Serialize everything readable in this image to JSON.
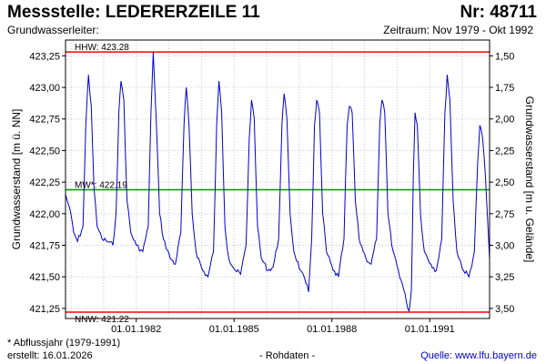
{
  "header": {
    "title": "Messstelle: LEDERERZEILE 11",
    "number": "Nr: 48711",
    "aquifer": "Grundwasserleiter:",
    "period": "Zeitraum: Nov 1979 - Okt 1992"
  },
  "footer": {
    "footnote": "* Abflussjahr (1979-1991)",
    "created": "erstellt:  16.01.2026",
    "raw": "- Rohdaten -",
    "source": "Quelle: www.lfu.bayern.de"
  },
  "colors": {
    "series": "#0000cc",
    "extreme_lines": "#ff0000",
    "mean_line": "#009900",
    "grid": "#c8c8c8"
  },
  "chart_data": {
    "type": "line",
    "ylabel": "Grundwasserstand [m ü. NN]",
    "ylabel_right": "Grundwasserstand [m u. Gelände]",
    "ylim": [
      421.17,
      423.375
    ],
    "xlim": [
      "1979-11-01",
      "1992-11-01"
    ],
    "grid": true,
    "y_ticks": [
      {
        "value": 423.25,
        "label": "423,25"
      },
      {
        "value": 423.0,
        "label": "423,00"
      },
      {
        "value": 422.75,
        "label": "422,75"
      },
      {
        "value": 422.5,
        "label": "422,50"
      },
      {
        "value": 422.25,
        "label": "422,25"
      },
      {
        "value": 422.0,
        "label": "422,00"
      },
      {
        "value": 421.75,
        "label": "421,75"
      },
      {
        "value": 421.5,
        "label": "421,50"
      },
      {
        "value": 421.25,
        "label": "421,25"
      }
    ],
    "y_ticks_right": [
      {
        "value": 423.25,
        "label": "1,50"
      },
      {
        "value": 423.0,
        "label": "1,75"
      },
      {
        "value": 422.75,
        "label": "2,00"
      },
      {
        "value": 422.5,
        "label": "2,25"
      },
      {
        "value": 422.25,
        "label": "2,50"
      },
      {
        "value": 422.0,
        "label": "2,75"
      },
      {
        "value": 421.75,
        "label": "3,00"
      },
      {
        "value": 421.5,
        "label": "3,25"
      },
      {
        "value": 421.25,
        "label": "3,50"
      }
    ],
    "x_ticks": [
      {
        "value": "1982-01-01",
        "label": "01.01.1982"
      },
      {
        "value": "1985-01-01",
        "label": "01.01.1985"
      },
      {
        "value": "1988-01-01",
        "label": "01.01.1988"
      },
      {
        "value": "1991-01-01",
        "label": "01.01.1991"
      }
    ],
    "reference_lines": [
      {
        "name": "HHW",
        "value": 423.28,
        "label": "HHW: 423.28"
      },
      {
        "name": "MW",
        "value": 422.19,
        "label": "MW*: 422.19"
      },
      {
        "name": "NNW",
        "value": 421.22,
        "label": "NNW: 421.22"
      }
    ],
    "series": [
      {
        "points": [
          [
            "1979-11-01",
            422.15
          ],
          [
            "1979-12-15",
            422.05
          ],
          [
            "1980-02-01",
            421.85
          ],
          [
            "1980-03-15",
            421.78
          ],
          [
            "1980-05-15",
            421.9
          ],
          [
            "1980-06-15",
            422.7
          ],
          [
            "1980-07-15",
            423.1
          ],
          [
            "1980-08-15",
            422.85
          ],
          [
            "1980-09-15",
            422.2
          ],
          [
            "1980-10-20",
            421.9
          ],
          [
            "1980-12-15",
            421.8
          ],
          [
            "1981-02-15",
            421.78
          ],
          [
            "1981-04-15",
            421.75
          ],
          [
            "1981-05-20",
            422.0
          ],
          [
            "1981-06-20",
            422.8
          ],
          [
            "1981-07-15",
            423.05
          ],
          [
            "1981-08-15",
            422.9
          ],
          [
            "1981-09-20",
            422.1
          ],
          [
            "1981-11-01",
            421.85
          ],
          [
            "1982-01-01",
            421.75
          ],
          [
            "1982-03-15",
            421.7
          ],
          [
            "1982-05-15",
            421.9
          ],
          [
            "1982-06-15",
            422.8
          ],
          [
            "1982-07-10",
            423.28
          ],
          [
            "1982-08-15",
            422.7
          ],
          [
            "1982-09-20",
            422.0
          ],
          [
            "1982-11-01",
            421.8
          ],
          [
            "1983-01-15",
            421.65
          ],
          [
            "1983-03-15",
            421.6
          ],
          [
            "1983-05-15",
            421.85
          ],
          [
            "1983-06-20",
            422.7
          ],
          [
            "1983-07-15",
            423.0
          ],
          [
            "1983-08-15",
            422.7
          ],
          [
            "1983-09-20",
            422.0
          ],
          [
            "1983-11-01",
            421.7
          ],
          [
            "1984-01-15",
            421.55
          ],
          [
            "1984-03-15",
            421.5
          ],
          [
            "1984-05-15",
            421.7
          ],
          [
            "1984-06-20",
            422.7
          ],
          [
            "1984-07-15",
            423.05
          ],
          [
            "1984-08-15",
            422.8
          ],
          [
            "1984-09-20",
            421.9
          ],
          [
            "1984-11-01",
            421.65
          ],
          [
            "1985-01-15",
            421.55
          ],
          [
            "1985-03-15",
            421.52
          ],
          [
            "1985-05-15",
            421.75
          ],
          [
            "1985-06-20",
            422.6
          ],
          [
            "1985-07-15",
            422.9
          ],
          [
            "1985-08-15",
            422.75
          ],
          [
            "1985-09-20",
            421.9
          ],
          [
            "1985-11-01",
            421.65
          ],
          [
            "1986-01-15",
            421.55
          ],
          [
            "1986-03-15",
            421.58
          ],
          [
            "1986-05-15",
            421.8
          ],
          [
            "1986-06-20",
            422.7
          ],
          [
            "1986-07-15",
            422.95
          ],
          [
            "1986-08-15",
            422.75
          ],
          [
            "1986-09-20",
            422.0
          ],
          [
            "1986-11-01",
            421.7
          ],
          [
            "1987-01-15",
            421.55
          ],
          [
            "1987-03-15",
            421.45
          ],
          [
            "1987-04-15",
            421.38
          ],
          [
            "1987-05-20",
            421.8
          ],
          [
            "1987-06-20",
            422.7
          ],
          [
            "1987-07-15",
            422.9
          ],
          [
            "1987-08-15",
            422.8
          ],
          [
            "1987-09-20",
            422.0
          ],
          [
            "1987-11-01",
            421.7
          ],
          [
            "1988-01-15",
            421.55
          ],
          [
            "1988-03-15",
            421.5
          ],
          [
            "1988-05-15",
            421.8
          ],
          [
            "1988-06-20",
            422.7
          ],
          [
            "1988-07-15",
            422.85
          ],
          [
            "1988-08-15",
            422.8
          ],
          [
            "1988-09-20",
            422.1
          ],
          [
            "1988-11-01",
            421.8
          ],
          [
            "1989-01-15",
            421.65
          ],
          [
            "1989-03-15",
            421.6
          ],
          [
            "1989-05-15",
            421.8
          ],
          [
            "1989-06-20",
            422.7
          ],
          [
            "1989-07-15",
            422.9
          ],
          [
            "1989-08-15",
            422.8
          ],
          [
            "1989-09-20",
            422.0
          ],
          [
            "1989-11-01",
            421.75
          ],
          [
            "1990-01-15",
            421.55
          ],
          [
            "1990-03-15",
            421.4
          ],
          [
            "1990-04-15",
            421.3
          ],
          [
            "1990-05-15",
            421.23
          ],
          [
            "1990-06-10",
            421.4
          ],
          [
            "1990-07-01",
            422.3
          ],
          [
            "1990-07-20",
            422.8
          ],
          [
            "1990-08-15",
            422.7
          ],
          [
            "1990-09-20",
            422.0
          ],
          [
            "1990-11-01",
            421.7
          ],
          [
            "1991-01-15",
            421.6
          ],
          [
            "1991-03-15",
            421.55
          ],
          [
            "1991-05-15",
            421.8
          ],
          [
            "1991-06-20",
            422.8
          ],
          [
            "1991-07-15",
            423.1
          ],
          [
            "1991-08-15",
            422.9
          ],
          [
            "1991-09-20",
            422.1
          ],
          [
            "1991-11-01",
            421.7
          ],
          [
            "1992-01-15",
            421.55
          ],
          [
            "1992-03-15",
            421.5
          ],
          [
            "1992-05-15",
            421.7
          ],
          [
            "1992-06-20",
            422.4
          ],
          [
            "1992-07-15",
            422.7
          ],
          [
            "1992-08-15",
            422.6
          ],
          [
            "1992-09-15",
            422.3
          ],
          [
            "1992-10-31",
            421.65
          ]
        ]
      }
    ],
    "footnote_marker_on": "MW"
  }
}
